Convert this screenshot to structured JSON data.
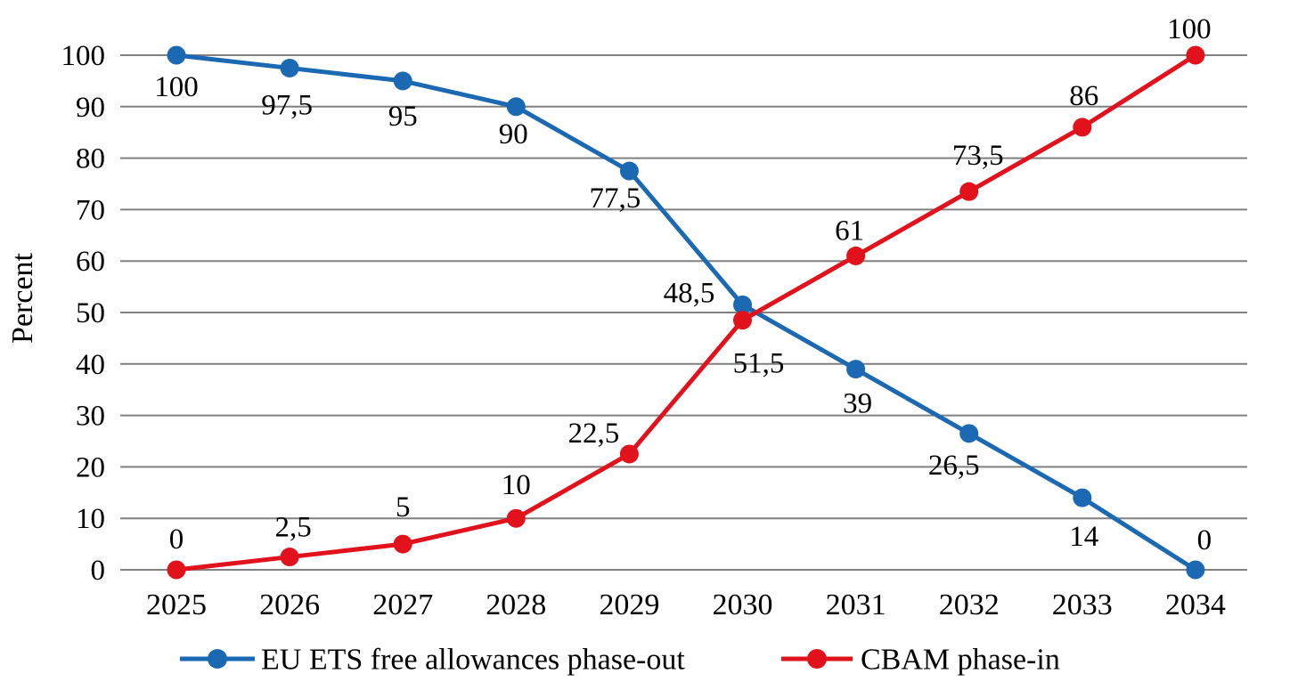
{
  "chart_data": {
    "type": "line",
    "title": "",
    "xlabel": "",
    "ylabel": "Percent",
    "categories": [
      "2025",
      "2026",
      "2027",
      "2028",
      "2029",
      "2030",
      "2031",
      "2032",
      "2033",
      "2034"
    ],
    "ylim": [
      0,
      100
    ],
    "y_ticks": [
      0,
      10,
      20,
      30,
      40,
      50,
      60,
      70,
      80,
      90,
      100
    ],
    "grid": "horizontal",
    "gridline_color": "#808080",
    "text_color": "#000000",
    "legend_position": "bottom",
    "series": [
      {
        "name": "EU ETS free allowances phase-out",
        "color": "#1b69b2",
        "values": [
          100,
          97.5,
          95,
          90,
          77.5,
          51.5,
          39,
          26.5,
          14,
          0
        ],
        "labels": [
          "100",
          "97,5",
          "95",
          "90",
          "77,5",
          "51,5",
          "39",
          "26,5",
          "14",
          "0"
        ],
        "label_offsets": [
          [
            0,
            36
          ],
          [
            -3,
            42
          ],
          [
            0,
            40
          ],
          [
            -3,
            31
          ],
          [
            -16,
            31
          ],
          [
            18,
            66
          ],
          [
            2,
            39
          ],
          [
            -17,
            36
          ],
          [
            2,
            44
          ],
          [
            10,
            -33
          ]
        ]
      },
      {
        "name": "CBAM phase-in",
        "color": "#e2121c",
        "values": [
          0,
          2.5,
          5,
          10,
          22.5,
          48.5,
          61,
          73.5,
          86,
          100
        ],
        "labels": [
          "0",
          "2,5",
          "5",
          "10",
          "22,5",
          "48,5",
          "61",
          "73,5",
          "86",
          "100"
        ],
        "label_offsets": [
          [
            0,
            -34
          ],
          [
            4,
            -33
          ],
          [
            0,
            -41
          ],
          [
            0,
            -37
          ],
          [
            -40,
            -23
          ],
          [
            -60,
            -30
          ],
          [
            -7,
            -28
          ],
          [
            10,
            -40
          ],
          [
            2,
            -35
          ],
          [
            -7,
            -29
          ]
        ]
      }
    ]
  }
}
